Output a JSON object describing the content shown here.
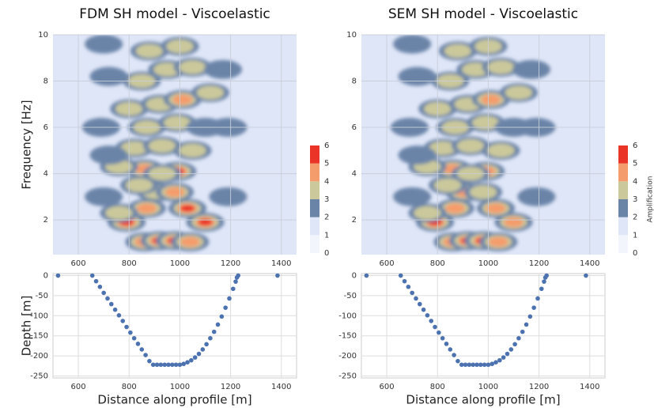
{
  "chart_data": [
    {
      "type": "heatmap",
      "title": "FDM SH model - Viscoelastic",
      "ylabel": "Frequency [Hz]",
      "xlim": [
        500,
        1460
      ],
      "xticks": [
        600,
        800,
        1000,
        1200,
        1400
      ],
      "ylim": [
        0.5,
        10
      ],
      "yticks": [
        2,
        4,
        6,
        8,
        10
      ],
      "grid": true,
      "colorbar": {
        "ticks": [
          0,
          1,
          2,
          3,
          4,
          5,
          6
        ],
        "colors": [
          "#f2f5fc",
          "#dfe6f8",
          "#6a84a8",
          "#cbc99b",
          "#f59c6c",
          "#ea3428"
        ]
      },
      "peaks": [
        {
          "x": 860,
          "y": 1.05,
          "value": 4.5
        },
        {
          "x": 920,
          "y": 1.1,
          "value": 5.5
        },
        {
          "x": 980,
          "y": 1.1,
          "value": 5.5
        },
        {
          "x": 1040,
          "y": 1.05,
          "value": 4.5
        },
        {
          "x": 790,
          "y": 1.9,
          "value": 5.5
        },
        {
          "x": 1100,
          "y": 1.9,
          "value": 5.5
        },
        {
          "x": 1030,
          "y": 2.5,
          "value": 5.5
        },
        {
          "x": 870,
          "y": 2.5,
          "value": 4.5
        },
        {
          "x": 760,
          "y": 2.3,
          "value": 3.5
        },
        {
          "x": 905,
          "y": 3.2,
          "value": 3.5
        },
        {
          "x": 980,
          "y": 3.2,
          "value": 4.5
        },
        {
          "x": 840,
          "y": 3.5,
          "value": 3.5
        },
        {
          "x": 860,
          "y": 4.2,
          "value": 4.5
        },
        {
          "x": 990,
          "y": 4.1,
          "value": 5.5
        },
        {
          "x": 930,
          "y": 4.0,
          "value": 3.5
        },
        {
          "x": 760,
          "y": 4.3,
          "value": 3.5
        },
        {
          "x": 820,
          "y": 5.1,
          "value": 3.5
        },
        {
          "x": 930,
          "y": 5.2,
          "value": 3.5
        },
        {
          "x": 1050,
          "y": 5.0,
          "value": 3.5
        },
        {
          "x": 720,
          "y": 4.8,
          "value": 2.5
        },
        {
          "x": 870,
          "y": 6.0,
          "value": 3.5
        },
        {
          "x": 990,
          "y": 6.2,
          "value": 3.5
        },
        {
          "x": 1100,
          "y": 6.0,
          "value": 2.5
        },
        {
          "x": 800,
          "y": 6.8,
          "value": 3.5
        },
        {
          "x": 920,
          "y": 7.0,
          "value": 3.5
        },
        {
          "x": 1010,
          "y": 7.2,
          "value": 4.5
        },
        {
          "x": 1120,
          "y": 7.5,
          "value": 3.5
        },
        {
          "x": 850,
          "y": 8.0,
          "value": 3.5
        },
        {
          "x": 950,
          "y": 8.5,
          "value": 3.5
        },
        {
          "x": 1050,
          "y": 8.6,
          "value": 3.5
        },
        {
          "x": 720,
          "y": 8.2,
          "value": 2.5
        },
        {
          "x": 1170,
          "y": 8.5,
          "value": 2.5
        },
        {
          "x": 880,
          "y": 9.3,
          "value": 3.5
        },
        {
          "x": 1000,
          "y": 9.5,
          "value": 3.5
        },
        {
          "x": 700,
          "y": 9.6,
          "value": 2.5
        },
        {
          "x": 690,
          "y": 6.0,
          "value": 2.5
        },
        {
          "x": 1190,
          "y": 6.0,
          "value": 2.5
        },
        {
          "x": 1190,
          "y": 3.0,
          "value": 2.5
        },
        {
          "x": 700,
          "y": 3.0,
          "value": 2.5
        }
      ]
    },
    {
      "type": "scatter",
      "xlabel": "Distance along profile [m]",
      "ylabel": "Depth [m]",
      "color": "#4c72b0",
      "xlim": [
        500,
        1460
      ],
      "xticks": [
        600,
        800,
        1000,
        1200,
        1400
      ],
      "ylim": [
        -255,
        5
      ],
      "yticks": [
        0,
        -50,
        -100,
        -150,
        -200,
        -250
      ],
      "grid": true,
      "x": [
        520,
        655,
        670,
        685,
        700,
        715,
        730,
        745,
        760,
        775,
        790,
        805,
        820,
        835,
        850,
        865,
        880,
        895,
        910,
        925,
        940,
        955,
        970,
        985,
        1000,
        1015,
        1030,
        1045,
        1060,
        1075,
        1090,
        1105,
        1120,
        1135,
        1150,
        1165,
        1180,
        1195,
        1210,
        1220,
        1225,
        1230,
        1385
      ],
      "y": [
        0,
        0,
        -14,
        -28,
        -43,
        -57,
        -71,
        -85,
        -99,
        -113,
        -128,
        -142,
        -156,
        -170,
        -184,
        -198,
        -213,
        -222,
        -222,
        -222,
        -222,
        -222,
        -222,
        -222,
        -222,
        -220,
        -216,
        -211,
        -204,
        -195,
        -184,
        -171,
        -156,
        -140,
        -122,
        -102,
        -80,
        -57,
        -33,
        -15,
        -5,
        0,
        0
      ]
    },
    {
      "type": "heatmap",
      "title": "SEM SH model - Viscoelastic",
      "xlim": [
        500,
        1460
      ],
      "xticks": [
        600,
        800,
        1000,
        1200,
        1400
      ],
      "ylim": [
        0.5,
        10
      ],
      "yticks": [
        2,
        4,
        6,
        8,
        10
      ],
      "grid": true,
      "colorbar": {
        "label": "Amplification",
        "ticks": [
          0,
          1,
          2,
          3,
          4,
          5,
          6
        ],
        "colors": [
          "#f2f5fc",
          "#dfe6f8",
          "#6a84a8",
          "#cbc99b",
          "#f59c6c",
          "#ea3428"
        ]
      },
      "peaks": [
        {
          "x": 860,
          "y": 1.05,
          "value": 4.5
        },
        {
          "x": 920,
          "y": 1.1,
          "value": 5.5
        },
        {
          "x": 980,
          "y": 1.1,
          "value": 5.5
        },
        {
          "x": 1040,
          "y": 1.05,
          "value": 4.5
        },
        {
          "x": 790,
          "y": 1.9,
          "value": 5.5
        },
        {
          "x": 1100,
          "y": 1.9,
          "value": 4.5
        },
        {
          "x": 1030,
          "y": 2.5,
          "value": 4.5
        },
        {
          "x": 870,
          "y": 2.5,
          "value": 4.5
        },
        {
          "x": 760,
          "y": 2.3,
          "value": 3.5
        },
        {
          "x": 905,
          "y": 3.2,
          "value": 4.5
        },
        {
          "x": 980,
          "y": 3.2,
          "value": 3.5
        },
        {
          "x": 840,
          "y": 3.5,
          "value": 3.5
        },
        {
          "x": 860,
          "y": 4.2,
          "value": 4.5
        },
        {
          "x": 990,
          "y": 4.1,
          "value": 4.5
        },
        {
          "x": 930,
          "y": 4.0,
          "value": 3.5
        },
        {
          "x": 760,
          "y": 4.3,
          "value": 3.5
        },
        {
          "x": 820,
          "y": 5.1,
          "value": 3.5
        },
        {
          "x": 930,
          "y": 5.2,
          "value": 3.5
        },
        {
          "x": 1050,
          "y": 5.0,
          "value": 3.5
        },
        {
          "x": 720,
          "y": 4.8,
          "value": 2.5
        },
        {
          "x": 870,
          "y": 6.0,
          "value": 3.5
        },
        {
          "x": 990,
          "y": 6.2,
          "value": 3.5
        },
        {
          "x": 1100,
          "y": 6.0,
          "value": 2.5
        },
        {
          "x": 800,
          "y": 6.8,
          "value": 3.5
        },
        {
          "x": 920,
          "y": 7.0,
          "value": 3.5
        },
        {
          "x": 1010,
          "y": 7.2,
          "value": 4.5
        },
        {
          "x": 1120,
          "y": 7.5,
          "value": 3.5
        },
        {
          "x": 850,
          "y": 8.0,
          "value": 3.5
        },
        {
          "x": 950,
          "y": 8.5,
          "value": 3.5
        },
        {
          "x": 1050,
          "y": 8.6,
          "value": 3.5
        },
        {
          "x": 720,
          "y": 8.2,
          "value": 2.5
        },
        {
          "x": 1170,
          "y": 8.5,
          "value": 2.5
        },
        {
          "x": 880,
          "y": 9.3,
          "value": 3.5
        },
        {
          "x": 1000,
          "y": 9.5,
          "value": 3.5
        },
        {
          "x": 700,
          "y": 9.6,
          "value": 2.5
        },
        {
          "x": 690,
          "y": 6.0,
          "value": 2.5
        },
        {
          "x": 1190,
          "y": 6.0,
          "value": 2.5
        },
        {
          "x": 1190,
          "y": 3.0,
          "value": 2.5
        },
        {
          "x": 700,
          "y": 3.0,
          "value": 2.5
        }
      ]
    },
    {
      "type": "scatter",
      "xlabel": "Distance along profile [m]",
      "color": "#4c72b0",
      "xlim": [
        500,
        1460
      ],
      "xticks": [
        600,
        800,
        1000,
        1200,
        1400
      ],
      "ylim": [
        -255,
        5
      ],
      "yticks": [
        0,
        -50,
        -100,
        -150,
        -200,
        -250
      ],
      "grid": true,
      "x": [
        520,
        655,
        670,
        685,
        700,
        715,
        730,
        745,
        760,
        775,
        790,
        805,
        820,
        835,
        850,
        865,
        880,
        895,
        910,
        925,
        940,
        955,
        970,
        985,
        1000,
        1015,
        1030,
        1045,
        1060,
        1075,
        1090,
        1105,
        1120,
        1135,
        1150,
        1165,
        1180,
        1195,
        1210,
        1220,
        1225,
        1230,
        1385
      ],
      "y": [
        0,
        0,
        -14,
        -28,
        -43,
        -57,
        -71,
        -85,
        -99,
        -113,
        -128,
        -142,
        -156,
        -170,
        -184,
        -198,
        -213,
        -222,
        -222,
        -222,
        -222,
        -222,
        -222,
        -222,
        -222,
        -220,
        -216,
        -211,
        -204,
        -195,
        -184,
        -171,
        -156,
        -140,
        -122,
        -102,
        -80,
        -57,
        -33,
        -15,
        -5,
        0,
        0
      ]
    }
  ]
}
